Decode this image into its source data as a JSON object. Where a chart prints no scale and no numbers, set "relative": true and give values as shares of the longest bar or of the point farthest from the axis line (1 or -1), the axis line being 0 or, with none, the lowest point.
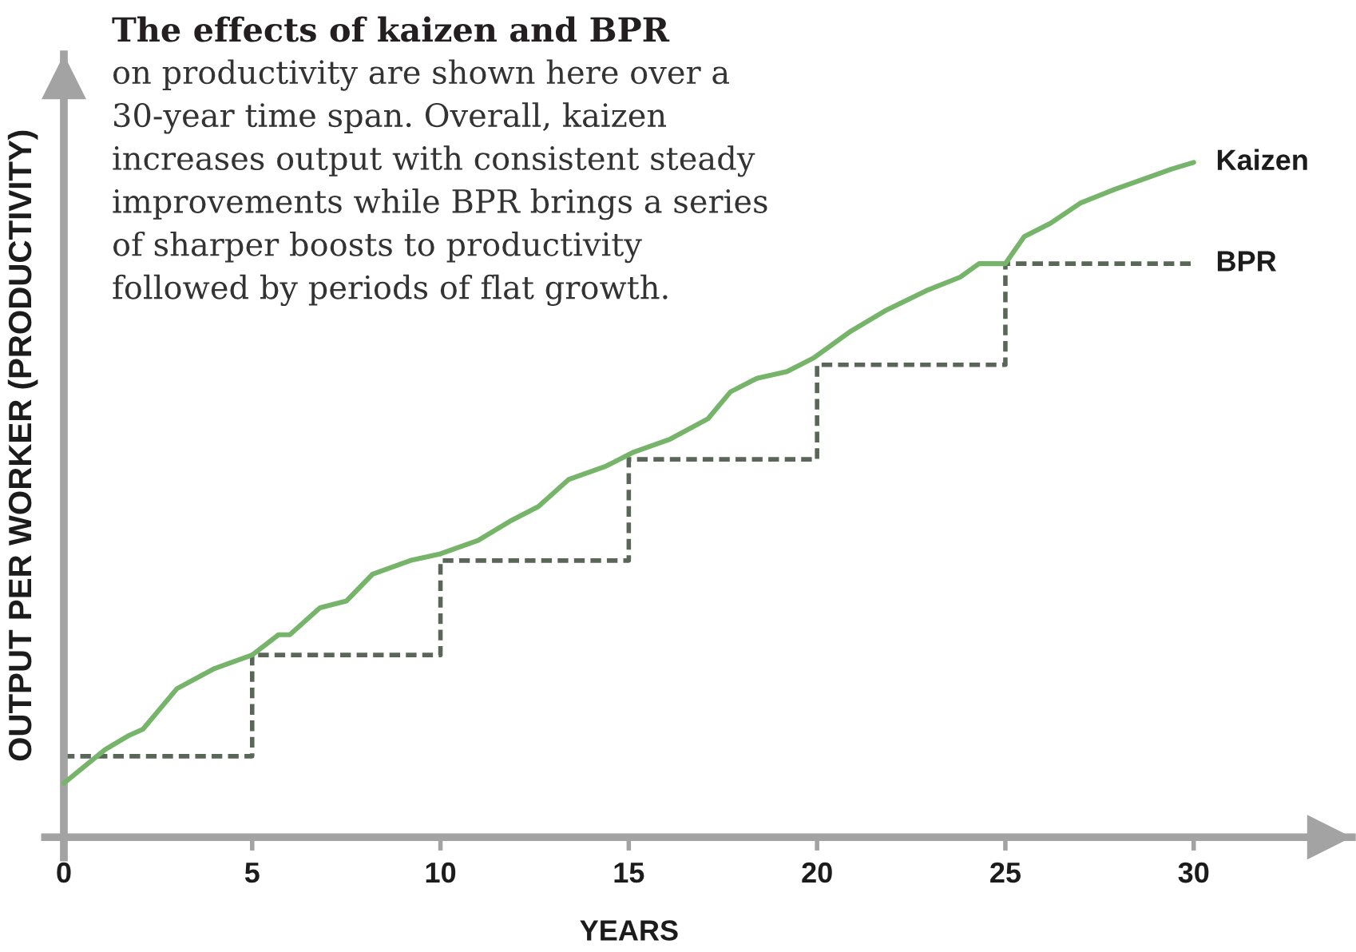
{
  "chart_data": {
    "type": "line",
    "title": "The effects of kaizen and BPR",
    "subtitle": "on productivity are shown here over a 30-year time span. Overall, kaizen increases output with consistent steady improvements while BPR brings a series of sharper boosts to productivity followed by periods of flat growth.",
    "xlabel": "YEARS",
    "ylabel": "OUTPUT PER WORKER (PRODUCTIVITY)",
    "relative": true,
    "tick_labels": "x",
    "xlim": [
      -0.5,
      34.2
    ],
    "xticks": [
      0,
      5,
      10,
      15,
      20,
      25,
      30
    ],
    "series": [
      {
        "name": "Kaizen",
        "color": "#76b46a",
        "x": [
          0,
          1.1,
          1.7,
          2.1,
          3.0,
          4.0,
          5.0,
          5.7,
          6.0,
          6.8,
          7.5,
          8.2,
          9.2,
          10.0,
          11.0,
          11.9,
          12.6,
          13.4,
          14.4,
          15.1,
          16.1,
          17.1,
          17.7,
          18.4,
          19.2,
          19.9,
          20.9,
          21.8,
          22.9,
          23.8,
          24.3,
          25.0,
          25.5,
          26.2,
          27.0,
          27.9,
          28.9,
          29.4,
          30.0
        ],
        "values": [
          0.08,
          0.13,
          0.15,
          0.16,
          0.22,
          0.25,
          0.27,
          0.3,
          0.3,
          0.34,
          0.35,
          0.39,
          0.41,
          0.42,
          0.44,
          0.47,
          0.49,
          0.53,
          0.55,
          0.57,
          0.59,
          0.62,
          0.66,
          0.68,
          0.69,
          0.71,
          0.75,
          0.78,
          0.81,
          0.83,
          0.85,
          0.85,
          0.89,
          0.91,
          0.94,
          0.96,
          0.98,
          0.99,
          1.0
        ]
      },
      {
        "name": "BPR",
        "type": "step",
        "color": "#5a6658",
        "line_style": "dashed",
        "x": [
          0,
          5,
          10,
          15,
          20,
          25,
          30
        ],
        "values": [
          0.12,
          0.27,
          0.41,
          0.56,
          0.7,
          0.85,
          0.85
        ]
      }
    ]
  }
}
